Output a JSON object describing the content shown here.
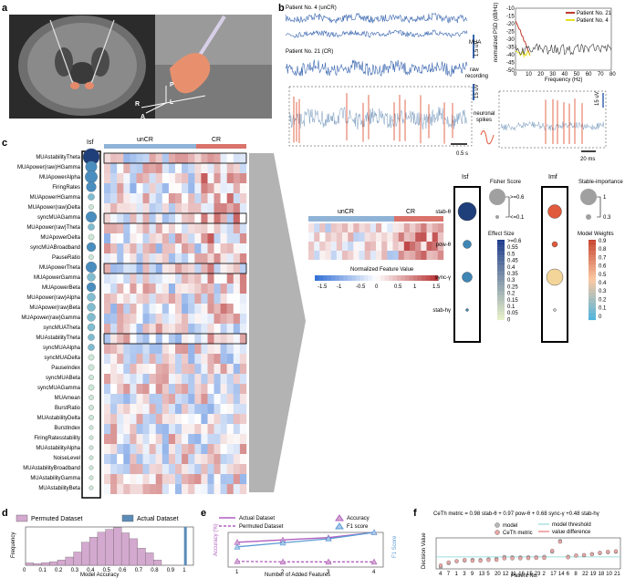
{
  "panel_labels": [
    "a",
    "b",
    "c",
    "d",
    "e",
    "f"
  ],
  "panel_a": {
    "orientation_labels": [
      "P",
      "R",
      "L",
      "A"
    ]
  },
  "panel_b": {
    "trace_titles": [
      "Patient No. 4 (unCR)",
      "Patient No. 21 (CR)"
    ],
    "labels": [
      "MUA",
      "raw\nrecording",
      "neuronal\nspikes"
    ],
    "scale_bars": {
      "mua": "1.5 uV",
      "raw": "15 uV",
      "raw2": "15 uV",
      "time": "0.5 s",
      "time2": "20 ms"
    },
    "psd": {
      "ylabel": "normalized PSD (dB/Hz)",
      "xlabel": "Frequency (Hz)",
      "xticks": [
        "0",
        "10",
        "20",
        "30",
        "40",
        "50",
        "60",
        "70",
        "80"
      ],
      "yticks": [
        "-10",
        "-15",
        "-20",
        "-25",
        "-30",
        "-35",
        "-40",
        "-45",
        "-50"
      ],
      "legend": [
        {
          "name": "Patient No. 21",
          "color": "#c0392b"
        },
        {
          "name": "Patient No. 4",
          "color": "#e8e020"
        }
      ]
    }
  },
  "panel_c": {
    "col_isf": "Isf",
    "group_labels": [
      "unCR",
      "CR"
    ],
    "features": [
      "MUAstabilityTheta",
      "MUApower(raw)HGamma",
      "MUApowerAlpha",
      "FiringRates",
      "MUApowerHGamma",
      "MUApower(raw)Delta",
      "syncMUAGamma",
      "MUApower(raw)Theta",
      "MUApowerDelta",
      "syncMUABroadband",
      "PauseRatio",
      "MUApowerTheta",
      "MUApowerGamma",
      "MUApowerBeta",
      "MUApower(raw)Alpha",
      "MUApower(raw)Beta",
      "MUApower(raw)Gamma",
      "syncMUATheta",
      "MUAstabilityTheta",
      "syncMUAAlpha",
      "syncMUADelta",
      "PauseIndex",
      "syncMUABeta",
      "syncMUAGamma",
      "MUAmean",
      "BurstRatio",
      "MUAstabilityDelta",
      "BurstIndex",
      "FiringRatesstability",
      "MUAstabilityAlpha",
      "NoiseLevel",
      "MUAstabilityBroadband",
      "MUAstabilityGamma",
      "MUAstabilityBeta"
    ],
    "isf_sizes": [
      1.0,
      0.7,
      0.75,
      0.6,
      0.4,
      0.3,
      0.65,
      0.4,
      0.35,
      0.55,
      0.3,
      0.65,
      0.5,
      0.55,
      0.5,
      0.5,
      0.5,
      0.45,
      0.4,
      0.4,
      0.35,
      0.35,
      0.3,
      0.35,
      0.3,
      0.3,
      0.3,
      0.25,
      0.25,
      0.25,
      0.25,
      0.25,
      0.25,
      0.25
    ],
    "zoom": {
      "group_labels": [
        "unCR",
        "CR"
      ],
      "rows": [
        "stab-θ",
        "pow-θ",
        "sync-γ",
        "stab-hγ"
      ],
      "isf_title": "Isf",
      "imf_title": "Imf",
      "isf_sizes": [
        1.0,
        0.45,
        0.55,
        0.15
      ],
      "imf_sizes": [
        0.75,
        0.3,
        0.9,
        0.15
      ],
      "imf_colors": [
        "#e05a3c",
        "#e05a3c",
        "#f3d59a",
        "#cccccc"
      ]
    },
    "colorbar": {
      "title": "Normalized Feature Value",
      "ticks": [
        "-1.5",
        "-1",
        "-0.5",
        "0",
        "0.5",
        "1",
        "1.5"
      ]
    },
    "legends": {
      "fisher": {
        "title": "Fisher Score",
        "labels": [
          ">=0.6",
          "<=0.1"
        ]
      },
      "stable": {
        "title": "Stable-importance",
        "labels": [
          "1",
          "0.3"
        ]
      },
      "effect": {
        "title": "Effect Size",
        "ticks": [
          ">=0.6",
          "0.55",
          "0.5",
          "0.45",
          "0.4",
          "0.35",
          "0.3",
          "0.25",
          "0.2",
          "0.15",
          "0.1",
          "0.05",
          "0"
        ]
      },
      "weights": {
        "title": "Model Weights",
        "ticks": [
          "0.9",
          "0.8",
          "0.7",
          "0.6",
          "0.5",
          "0.4",
          "0.3",
          "0.2",
          "0.1",
          "0"
        ]
      }
    }
  },
  "panel_d": {
    "legend": [
      "Permuted Dataset",
      "Actual Dataset"
    ],
    "colors": {
      "permuted": "#d4a9cf",
      "actual": "#5b8cb8"
    }
  },
  "panel_e": {
    "legend": [
      "Actual Dataset",
      "Permuted Dataset",
      "Accuracy",
      "F1 score"
    ],
    "colors": {
      "acc": "#b05fbf",
      "f1": "#5b9bd5"
    }
  },
  "panel_f": {
    "equation": "CeTh metric = 0.98 stab-θ + 0.97 pow-θ + 0.68 sync-γ +0.48 stab-hγ",
    "legend": [
      "model",
      "CeTh metric",
      "model threshold",
      "value difference"
    ]
  },
  "chart_data": [
    {
      "type": "bar",
      "title": "",
      "xlabel": "Model Accuracy",
      "ylabel": "Frequency",
      "xlim": [
        0,
        1.05
      ],
      "ylim": [
        0,
        130
      ],
      "xticks": [
        "0",
        "0.1",
        "0.2",
        "0.3",
        "0.4",
        "0.5",
        "0.6",
        "0.7",
        "0.8",
        "0.9",
        "1"
      ],
      "yticks": [
        "0",
        "20",
        "40",
        "60",
        "80",
        "100",
        "120"
      ],
      "series": [
        {
          "name": "Permuted Dataset",
          "bins": [
            0.0,
            0.05,
            0.1,
            0.15,
            0.2,
            0.25,
            0.3,
            0.35,
            0.4,
            0.45,
            0.5,
            0.55,
            0.6,
            0.65,
            0.7,
            0.75,
            0.8
          ],
          "values": [
            8,
            6,
            9,
            12,
            18,
            28,
            45,
            78,
            95,
            112,
            122,
            128,
            110,
            90,
            58,
            42,
            18
          ]
        },
        {
          "name": "Actual Dataset",
          "x": 1.0,
          "value": 130
        }
      ]
    },
    {
      "type": "line",
      "title": "",
      "xlabel": "Number of Added Features",
      "ylabel": "Accuracy (%)",
      "ylabel_right": "F1 Score",
      "x": [
        1,
        2,
        3,
        4
      ],
      "ylim": [
        40,
        100
      ],
      "ylim_right": [
        0.4,
        1
      ],
      "yticks": [
        "40",
        "45",
        "50",
        "55",
        "60",
        "65",
        "70",
        "75",
        "80",
        "85",
        "90",
        "95",
        "100"
      ],
      "yticks_right": [
        "0.4",
        "0.5",
        "0.6",
        "0.7",
        "0.8",
        "0.9",
        "1"
      ],
      "series": [
        {
          "name": "Accuracy",
          "dataset": "Actual",
          "axis": "left",
          "values": [
            83,
            87,
            91,
            100
          ]
        },
        {
          "name": "F1 score",
          "dataset": "Actual",
          "axis": "right",
          "values": [
            0.75,
            0.82,
            0.89,
            1.0
          ]
        },
        {
          "name": "Accuracy",
          "dataset": "Permuted",
          "axis": "left",
          "values": [
            50,
            49,
            49,
            49
          ]
        }
      ]
    },
    {
      "type": "scatter",
      "title": "",
      "xlabel": "Patient No.",
      "ylabel": "Decision Value",
      "ylim": [
        -2.5,
        4
      ],
      "yticks": [
        "-2",
        "-1",
        "0",
        "1",
        "2",
        "3",
        "4"
      ],
      "categories": [
        "4",
        "7",
        "1",
        "3",
        "9",
        "13",
        "5",
        "20",
        "12",
        "11",
        "16",
        "15",
        "23",
        "2",
        "17",
        "14",
        "6",
        "8",
        "22",
        "19",
        "18",
        "10",
        "21"
      ],
      "series": [
        {
          "name": "model",
          "values": [
            -2.1,
            -1.3,
            -0.9,
            -0.75,
            -0.6,
            -0.65,
            -0.5,
            -0.4,
            0.0,
            -0.05,
            -0.1,
            -0.05,
            -0.05,
            0.05,
            1.1,
            3.35,
            0.05,
            0.3,
            0.35,
            0.6,
            0.8,
            1.0,
            1.1
          ]
        },
        {
          "name": "CeTh metric",
          "values": [
            -1.8,
            -1.15,
            -0.9,
            -0.65,
            -0.8,
            -0.8,
            -0.65,
            -0.6,
            -0.3,
            -0.3,
            -0.3,
            -0.25,
            -0.2,
            -0.2,
            1.3,
            3.2,
            -0.1,
            0.3,
            0.4,
            0.55,
            0.9,
            1.1,
            1.2
          ]
        }
      ],
      "threshold": 0
    }
  ]
}
